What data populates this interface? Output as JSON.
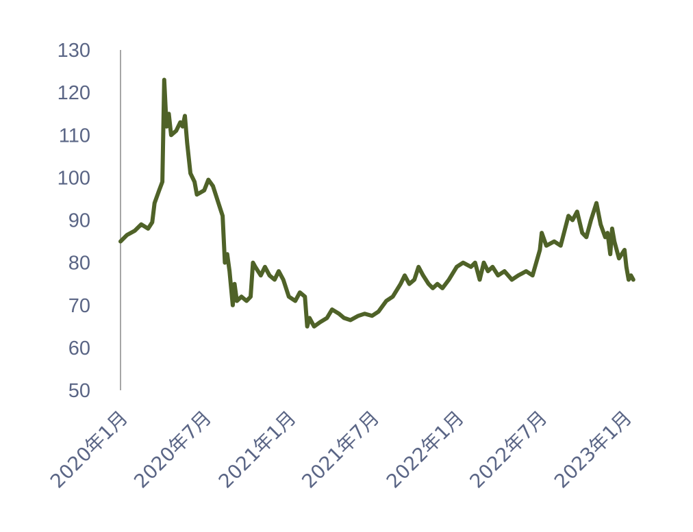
{
  "chart_data": {
    "type": "line",
    "title": "",
    "xlabel": "",
    "ylabel": "",
    "ylim": [
      50,
      130
    ],
    "y_ticks": [
      50,
      60,
      70,
      80,
      90,
      100,
      110,
      120,
      130
    ],
    "x_ticks": [
      {
        "date": "2020-01",
        "label": "2020年1月"
      },
      {
        "date": "2020-07",
        "label": "2020年7月"
      },
      {
        "date": "2021-01",
        "label": "2021年1月"
      },
      {
        "date": "2021-07",
        "label": "2021年7月"
      },
      {
        "date": "2022-01",
        "label": "2022年1月"
      },
      {
        "date": "2022-07",
        "label": "2022年7月"
      },
      {
        "date": "2023-01",
        "label": "2023年1月"
      }
    ],
    "grid": false,
    "legend": "none",
    "line_color": "#4f6228",
    "axis_color": "#a6a6a6",
    "label_color": "#5a6585",
    "series": [
      {
        "points": [
          [
            "2020-01-01",
            85
          ],
          [
            "2020-01-15",
            86.5
          ],
          [
            "2020-02-01",
            87.5
          ],
          [
            "2020-02-15",
            89
          ],
          [
            "2020-03-01",
            88
          ],
          [
            "2020-03-10",
            89.5
          ],
          [
            "2020-03-15",
            94
          ],
          [
            "2020-03-25",
            97
          ],
          [
            "2020-04-01",
            99
          ],
          [
            "2020-04-05",
            123
          ],
          [
            "2020-04-10",
            112
          ],
          [
            "2020-04-15",
            115
          ],
          [
            "2020-04-20",
            110
          ],
          [
            "2020-05-01",
            111
          ],
          [
            "2020-05-10",
            113
          ],
          [
            "2020-05-15",
            112
          ],
          [
            "2020-05-20",
            114.5
          ],
          [
            "2020-05-25",
            108
          ],
          [
            "2020-06-01",
            101
          ],
          [
            "2020-06-10",
            99
          ],
          [
            "2020-06-15",
            96
          ],
          [
            "2020-07-01",
            97
          ],
          [
            "2020-07-10",
            99.5
          ],
          [
            "2020-07-20",
            98
          ],
          [
            "2020-08-01",
            94
          ],
          [
            "2020-08-10",
            91
          ],
          [
            "2020-08-15",
            80
          ],
          [
            "2020-08-20",
            82
          ],
          [
            "2020-08-25",
            78
          ],
          [
            "2020-09-01",
            70
          ],
          [
            "2020-09-05",
            75
          ],
          [
            "2020-09-10",
            71
          ],
          [
            "2020-09-20",
            72
          ],
          [
            "2020-10-01",
            71
          ],
          [
            "2020-10-10",
            72
          ],
          [
            "2020-10-15",
            80
          ],
          [
            "2020-10-20",
            79
          ],
          [
            "2020-11-01",
            77
          ],
          [
            "2020-11-10",
            79
          ],
          [
            "2020-11-20",
            77
          ],
          [
            "2020-12-01",
            76
          ],
          [
            "2020-12-10",
            78
          ],
          [
            "2020-12-20",
            76
          ],
          [
            "2021-01-01",
            72
          ],
          [
            "2021-01-15",
            71
          ],
          [
            "2021-01-25",
            73
          ],
          [
            "2021-02-05",
            72
          ],
          [
            "2021-02-10",
            65
          ],
          [
            "2021-02-15",
            67
          ],
          [
            "2021-02-25",
            65
          ],
          [
            "2021-03-10",
            66
          ],
          [
            "2021-03-25",
            67
          ],
          [
            "2021-04-05",
            69
          ],
          [
            "2021-04-20",
            68
          ],
          [
            "2021-05-01",
            67
          ],
          [
            "2021-05-15",
            66.5
          ],
          [
            "2021-06-01",
            67.5
          ],
          [
            "2021-06-15",
            68
          ],
          [
            "2021-07-01",
            67.5
          ],
          [
            "2021-07-15",
            68.5
          ],
          [
            "2021-08-01",
            71
          ],
          [
            "2021-08-15",
            72
          ],
          [
            "2021-09-01",
            75
          ],
          [
            "2021-09-10",
            77
          ],
          [
            "2021-09-20",
            75
          ],
          [
            "2021-10-01",
            76
          ],
          [
            "2021-10-10",
            79
          ],
          [
            "2021-10-20",
            77
          ],
          [
            "2021-11-01",
            75
          ],
          [
            "2021-11-10",
            74
          ],
          [
            "2021-11-20",
            75
          ],
          [
            "2021-12-01",
            74
          ],
          [
            "2021-12-15",
            76
          ],
          [
            "2022-01-01",
            79
          ],
          [
            "2022-01-15",
            80
          ],
          [
            "2022-02-01",
            79
          ],
          [
            "2022-02-10",
            80
          ],
          [
            "2022-02-20",
            76
          ],
          [
            "2022-03-01",
            80
          ],
          [
            "2022-03-10",
            78
          ],
          [
            "2022-03-20",
            79
          ],
          [
            "2022-04-01",
            77
          ],
          [
            "2022-04-15",
            78
          ],
          [
            "2022-05-01",
            76
          ],
          [
            "2022-05-15",
            77
          ],
          [
            "2022-06-01",
            78
          ],
          [
            "2022-06-15",
            77
          ],
          [
            "2022-07-01",
            83
          ],
          [
            "2022-07-05",
            87
          ],
          [
            "2022-07-15",
            84
          ],
          [
            "2022-08-01",
            85
          ],
          [
            "2022-08-15",
            84
          ],
          [
            "2022-08-20",
            86
          ],
          [
            "2022-09-01",
            91
          ],
          [
            "2022-09-10",
            90
          ],
          [
            "2022-09-20",
            92
          ],
          [
            "2022-10-01",
            87
          ],
          [
            "2022-10-10",
            86
          ],
          [
            "2022-10-20",
            90
          ],
          [
            "2022-11-01",
            94
          ],
          [
            "2022-11-10",
            89
          ],
          [
            "2022-11-20",
            86
          ],
          [
            "2022-11-25",
            87
          ],
          [
            "2022-12-01",
            82
          ],
          [
            "2022-12-05",
            88
          ],
          [
            "2022-12-10",
            85
          ],
          [
            "2022-12-20",
            81
          ],
          [
            "2023-01-01",
            83
          ],
          [
            "2023-01-05",
            79
          ],
          [
            "2023-01-10",
            76
          ],
          [
            "2023-01-15",
            77
          ],
          [
            "2023-01-20",
            76
          ]
        ]
      }
    ]
  }
}
